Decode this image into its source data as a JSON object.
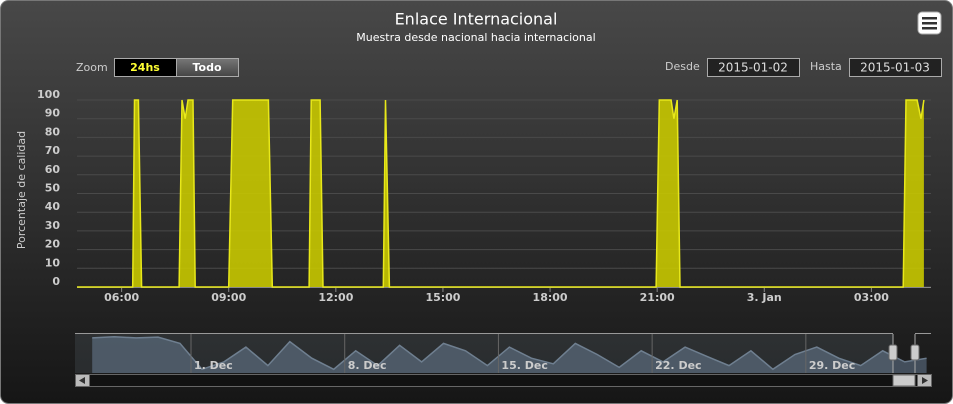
{
  "chart_data": {
    "type": "area",
    "title": "Enlace Internacional",
    "subtitle": "Muestra desde nacional hacia internacional",
    "y_axis_label": "Porcentaje de calidad",
    "color": "#c8c800",
    "line_color": "#e8e81a",
    "grid": true,
    "range_selector": {
      "label": "Zoom",
      "buttons": [
        "24hs",
        "Todo"
      ],
      "selected": 0
    },
    "date_range": {
      "from_label": "Desde",
      "from": "2015-01-02",
      "to_label": "Hasta",
      "to": "2015-01-03"
    },
    "xlim": [
      4.75,
      28.67
    ],
    "xticks": [
      {
        "value": 6,
        "label": "06:00"
      },
      {
        "value": 9,
        "label": "09:00"
      },
      {
        "value": 12,
        "label": "12:00"
      },
      {
        "value": 15,
        "label": "15:00"
      },
      {
        "value": 18,
        "label": "18:00"
      },
      {
        "value": 21,
        "label": "21:00"
      },
      {
        "value": 24,
        "label": "3. Jan"
      },
      {
        "value": 27,
        "label": "03:00"
      }
    ],
    "ylim": [
      0,
      100
    ],
    "yticks": [
      0,
      10,
      20,
      30,
      40,
      50,
      60,
      70,
      80,
      90,
      100
    ],
    "x": [
      4.75,
      6.31,
      6.36,
      6.47,
      6.56,
      7.61,
      7.69,
      7.78,
      7.86,
      8.0,
      8.06,
      9.0,
      9.11,
      10.11,
      10.22,
      11.25,
      11.31,
      11.56,
      11.64,
      13.33,
      13.39,
      13.5,
      20.97,
      21.06,
      21.39,
      21.47,
      21.56,
      21.64,
      27.89,
      27.97,
      28.28,
      28.39,
      28.47
    ],
    "values": [
      0,
      0,
      100,
      100,
      0,
      0,
      100,
      90,
      100,
      100,
      0,
      0,
      100,
      100,
      0,
      0,
      100,
      100,
      0,
      0,
      100,
      0,
      0,
      100,
      100,
      90,
      100,
      0,
      0,
      100,
      100,
      90,
      100
    ],
    "navigator": {
      "xlim": [
        -4.6,
        33.7
      ],
      "ylim": [
        0,
        100
      ],
      "xticks": [
        {
          "value": 0,
          "label": "1. Dec"
        },
        {
          "value": 7,
          "label": "8. Dec"
        },
        {
          "value": 14,
          "label": "15. Dec"
        },
        {
          "value": 21,
          "label": "22. Dec"
        },
        {
          "value": 28,
          "label": "29. Dec"
        }
      ],
      "x": [
        -4.5,
        -3.5,
        -2.5,
        -1.5,
        -0.5,
        0.5,
        1.5,
        2.5,
        3.5,
        4.5,
        5.5,
        6.5,
        7.5,
        8.5,
        9.5,
        10.5,
        11.5,
        12.5,
        13.5,
        14.5,
        15.5,
        16.5,
        17.5,
        18.5,
        19.5,
        20.5,
        21.5,
        22.5,
        23.5,
        24.5,
        25.5,
        26.5,
        27.5,
        28.5,
        29.5,
        30.5,
        31.5,
        32.5,
        33.5
      ],
      "values": [
        95,
        98,
        95,
        97,
        80,
        10,
        30,
        70,
        20,
        85,
        40,
        10,
        60,
        20,
        75,
        30,
        80,
        60,
        20,
        70,
        40,
        25,
        80,
        50,
        15,
        60,
        30,
        70,
        45,
        20,
        60,
        10,
        50,
        70,
        40,
        20,
        60,
        30,
        40
      ]
    }
  }
}
